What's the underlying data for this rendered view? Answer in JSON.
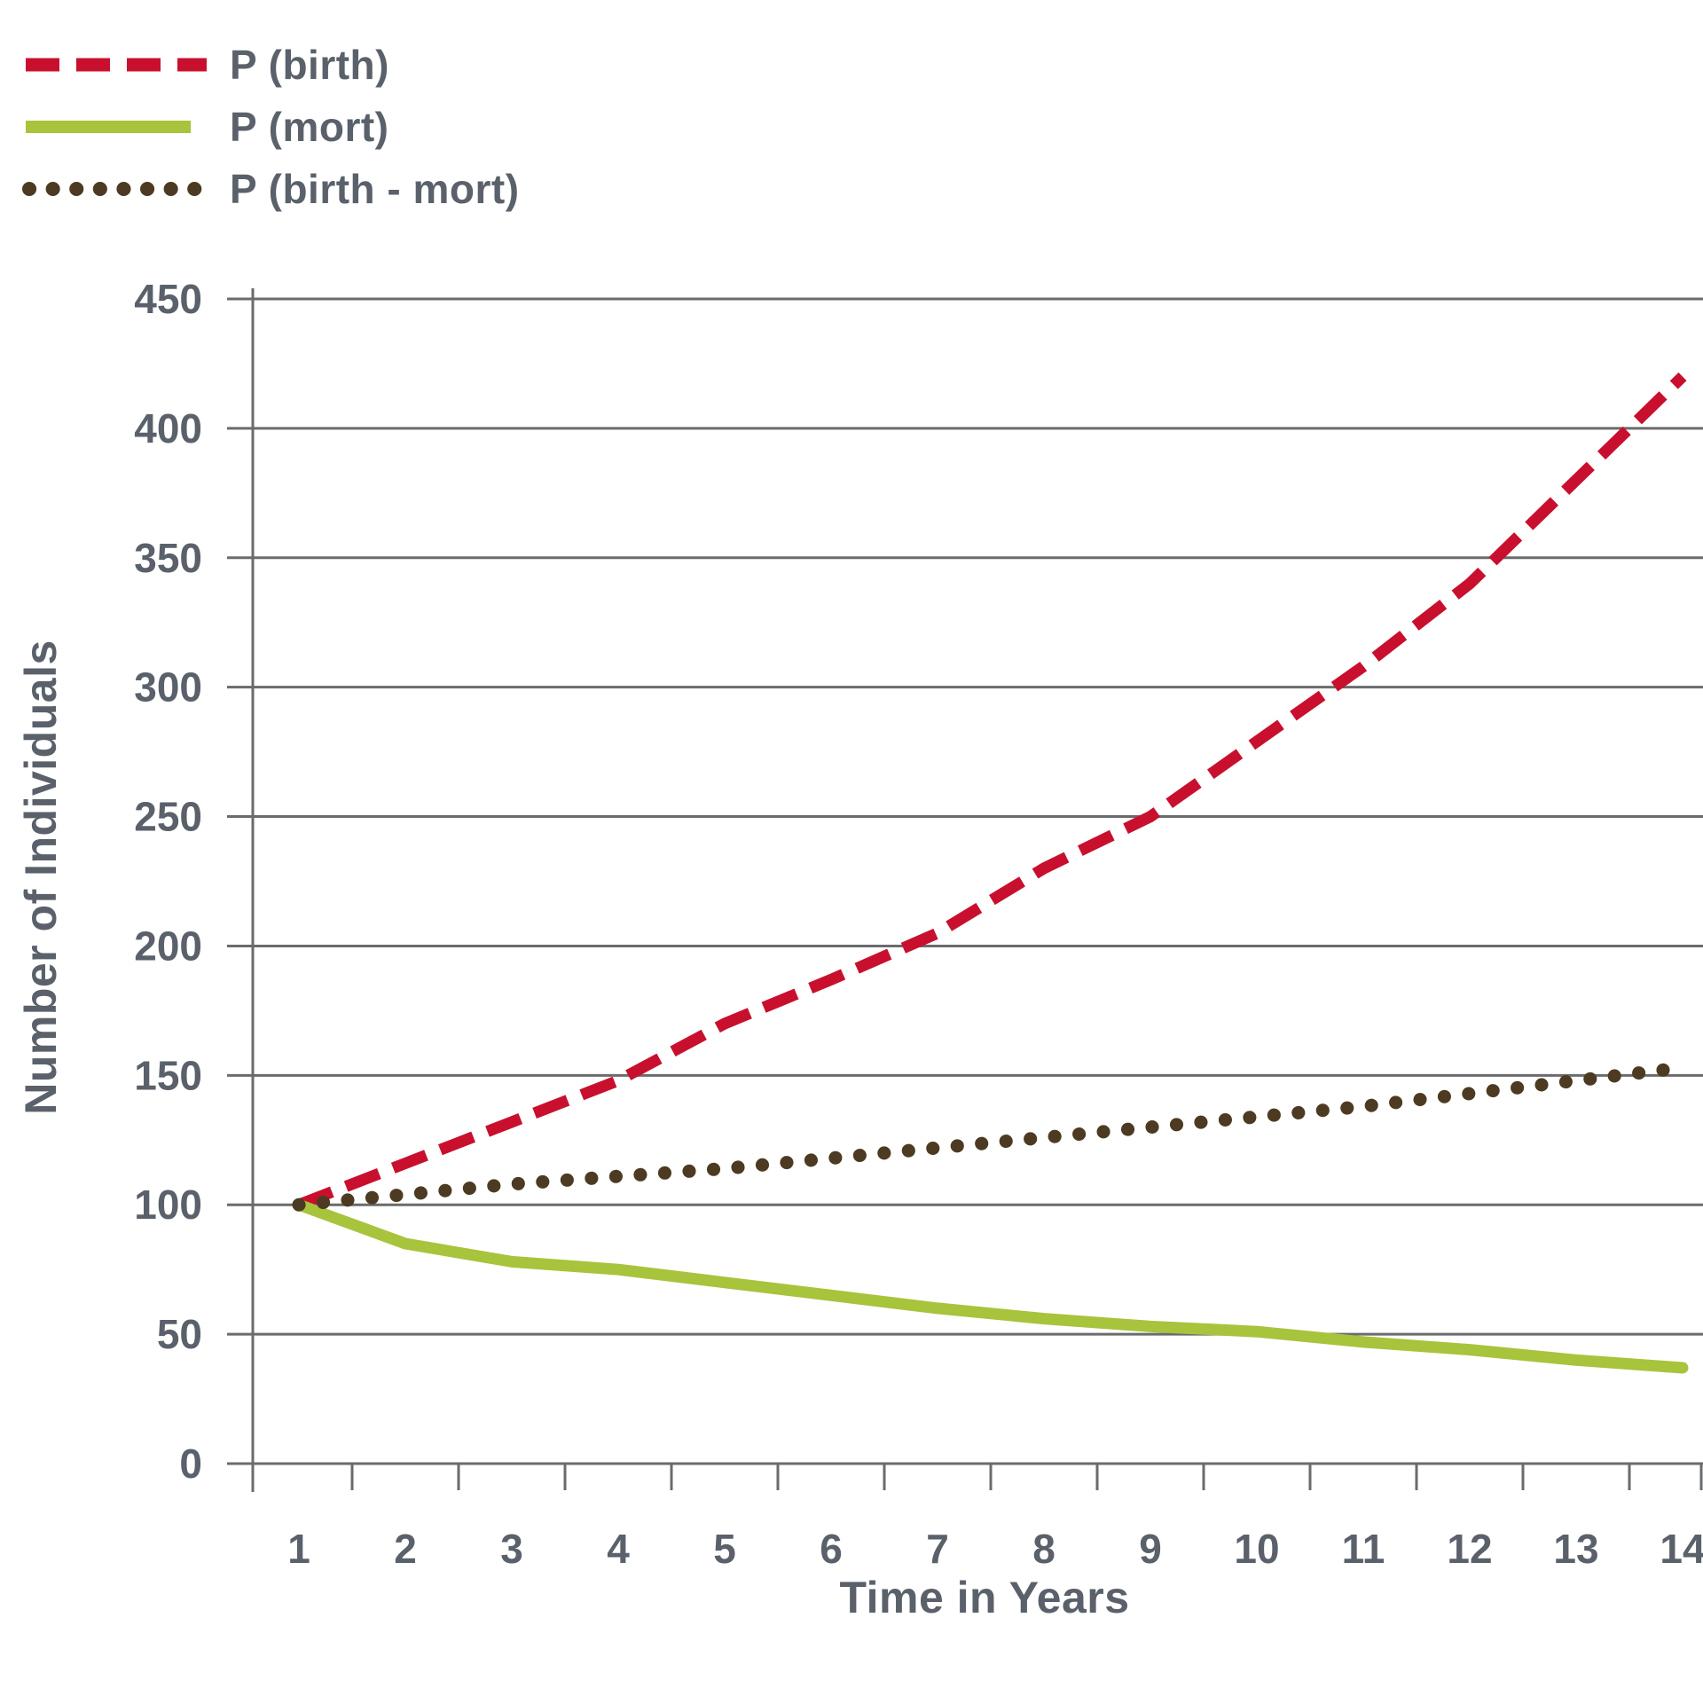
{
  "chart_data": {
    "type": "line",
    "title": "",
    "xlabel": "Time in Years",
    "ylabel": "Number of Individuals",
    "x": [
      1,
      2,
      3,
      4,
      5,
      6,
      7,
      8,
      9,
      10,
      11,
      12,
      13,
      14
    ],
    "xlim": [
      0.57,
      14.2
    ],
    "ylim": [
      0,
      450
    ],
    "yticks": [
      0,
      50,
      100,
      150,
      200,
      250,
      300,
      350,
      400,
      450
    ],
    "grid": "horizontal",
    "legend_position": "top-left",
    "series": [
      {
        "name": "P (birth)",
        "style": "dashed",
        "color": "#c8102e",
        "values": [
          100,
          116,
          132,
          148,
          170,
          187,
          205,
          230,
          250,
          279,
          308,
          340,
          380,
          420
        ]
      },
      {
        "name": "P (mort)",
        "style": "solid",
        "color": "#a8c33c",
        "values": [
          100,
          85,
          78,
          75,
          70,
          65,
          60,
          56,
          53,
          51,
          47,
          44,
          40,
          37
        ]
      },
      {
        "name": "P (birth - mort)",
        "style": "dotted",
        "color": "#4d3a22",
        "values": [
          100,
          104,
          108,
          111,
          114,
          118,
          122,
          126,
          130,
          134,
          138,
          143,
          148,
          153
        ]
      }
    ]
  },
  "colors": {
    "text": "#5a616b",
    "grid": "#6a6b6d",
    "axis": "#6a6b6d"
  }
}
